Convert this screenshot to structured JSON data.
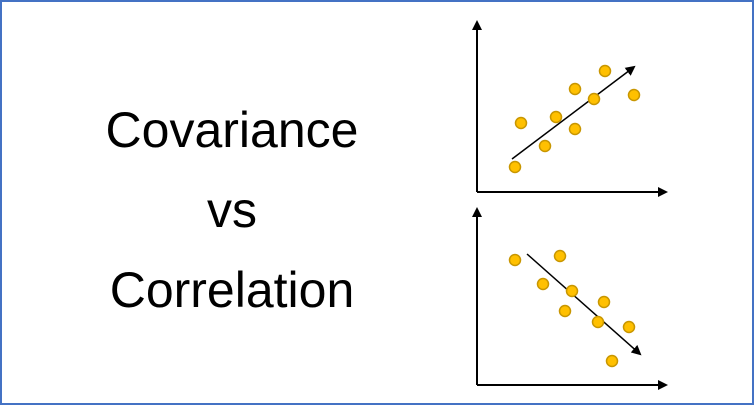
{
  "title": {
    "line1": "Covariance",
    "line2": "vs",
    "line3": "Correlation"
  },
  "colors": {
    "border": "#4472c4",
    "point_fill": "#ffc000",
    "point_stroke": "#c89600",
    "axis": "#000000"
  },
  "icons": {
    "positive_plot": "positive-correlation-scatter-icon",
    "negative_plot": "negative-correlation-scatter-icon"
  }
}
